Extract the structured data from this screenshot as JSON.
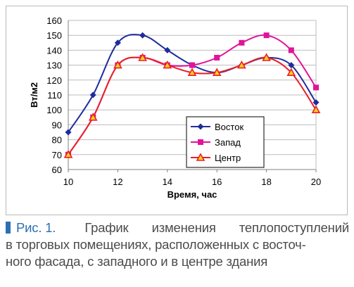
{
  "chart_data": {
    "type": "line",
    "xlabel": "Время, час",
    "ylabel": "Вт/м2",
    "xlim": [
      10,
      20
    ],
    "ylim": [
      60,
      160
    ],
    "x_ticks": [
      10,
      12,
      14,
      16,
      18,
      20
    ],
    "y_ticks": [
      60,
      70,
      80,
      90,
      100,
      110,
      120,
      130,
      140,
      150,
      160
    ],
    "grid": "horizontal",
    "legend_position": "right-middle",
    "x": [
      10,
      11,
      12,
      13,
      14,
      15,
      16,
      17,
      18,
      19,
      20
    ],
    "series": [
      {
        "name": "Восток",
        "color": "#1f2c9c",
        "marker": "diamond",
        "values": [
          85,
          110,
          145,
          150,
          140,
          130,
          125,
          130,
          135,
          130,
          105
        ]
      },
      {
        "name": "Запад",
        "color": "#e0139a",
        "marker": "square",
        "values": [
          70,
          95,
          130,
          135,
          130,
          130,
          135,
          145,
          150,
          140,
          115
        ]
      },
      {
        "name": "Центр",
        "color": "#e8202a",
        "marker": "triangle",
        "values": [
          70,
          95,
          130,
          135,
          130,
          125,
          125,
          130,
          135,
          125,
          100
        ]
      }
    ]
  },
  "caption": {
    "label": "Рис. 1.",
    "line1_words": [
      "График",
      "изменения",
      "теплопоступлений"
    ],
    "line2": "в торговых помещениях, расположенных с восточ-",
    "line3": "ного фасада, с западного и в центре здания",
    "accent_color": "#2d6fb3"
  }
}
